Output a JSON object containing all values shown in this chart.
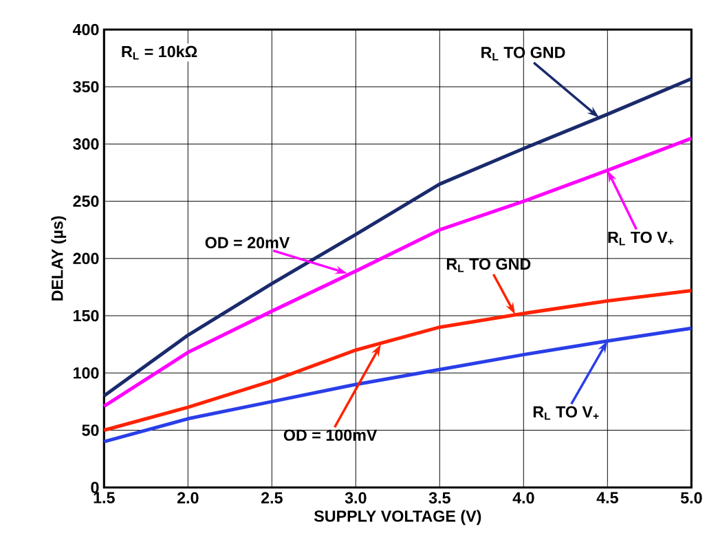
{
  "chart_data": {
    "type": "line",
    "xlabel": "SUPPLY VOLTAGE (V)",
    "ylabel": "DELAY (µs)",
    "x": [
      1.5,
      2.0,
      2.5,
      3.0,
      3.5,
      4.0,
      4.5,
      5.0
    ],
    "series": [
      {
        "color": "#1a2a6c",
        "values": [
          80,
          133,
          178,
          221,
          265,
          296,
          326,
          357
        ]
      },
      {
        "color": "#ff00ff",
        "values": [
          71,
          118,
          154,
          189,
          225,
          250,
          277,
          305
        ]
      },
      {
        "color": "#ff2200",
        "values": [
          50,
          70,
          93,
          120,
          140,
          152,
          163,
          172
        ]
      },
      {
        "color": "#2a3ee8",
        "values": [
          40,
          60,
          75,
          90,
          103,
          116,
          128,
          139
        ]
      }
    ],
    "xlim": [
      1.5,
      5.0
    ],
    "ylim": [
      0,
      400
    ],
    "xticks": [
      1.5,
      {
        "value": 2,
        "label": "2.0"
      },
      2.5,
      {
        "value": 3,
        "label": "3.0"
      },
      3.5,
      {
        "value": 4,
        "label": "4.0"
      },
      4.5,
      {
        "value": 5,
        "label": "5.0"
      }
    ],
    "yticks": [
      0,
      50,
      100,
      150,
      200,
      250,
      300,
      350,
      400
    ],
    "grid": true,
    "line_style": "solid",
    "annotations": [
      "R$_{L}$ = 10kΩ",
      {
        "text": "R$_{L}$ TO GND",
        "x": 4.45,
        "y": 323
      },
      {
        "text": "R$_{L}$ TO V$_{+}$",
        "x": 4.5,
        "y": 277
      },
      {
        "text": "OD = 20mV",
        "x": 2.95,
        "y": 187
      },
      {
        "text": "R$_{L}$ TO GND",
        "x": 3.95,
        "y": 151
      },
      {
        "text": "R$_{L}$ TO V$_{+}$",
        "x": 4.5,
        "y": 128
      },
      {
        "text": "OD = 100mV",
        "x": 3.15,
        "y": 125
      }
    ]
  }
}
